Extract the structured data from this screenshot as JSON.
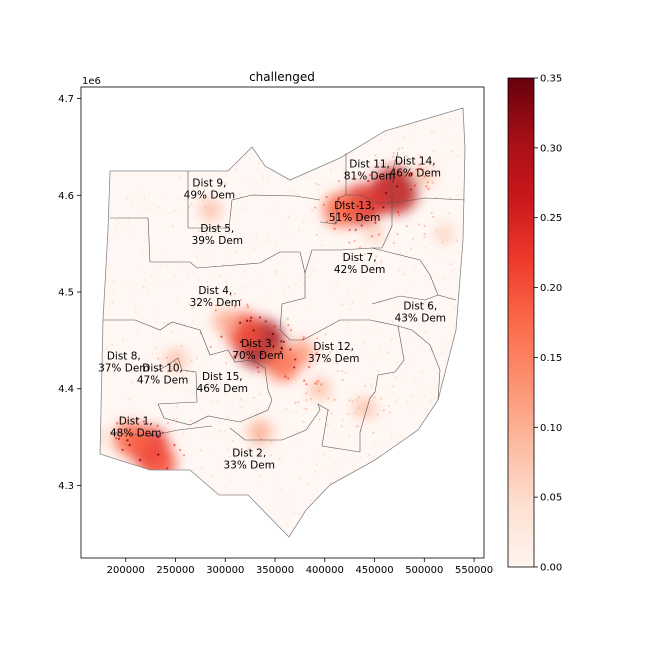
{
  "chart_data": {
    "type": "heatmap",
    "title": "challenged",
    "xlabel": "",
    "ylabel": "",
    "y_offset_label": "1e6",
    "x_range": [
      155000,
      560000
    ],
    "y_range": [
      4225000,
      4712000
    ],
    "x_ticks": [
      200000,
      250000,
      300000,
      350000,
      400000,
      450000,
      500000,
      550000
    ],
    "x_tick_labels": [
      "200000",
      "250000",
      "300000",
      "350000",
      "400000",
      "450000",
      "500000",
      "550000"
    ],
    "y_ticks": [
      4.3,
      4.4,
      4.5,
      4.6,
      4.7
    ],
    "y_tick_labels": [
      "4.3",
      "4.4",
      "4.5",
      "4.6",
      "4.7"
    ],
    "colorbar": {
      "cmap": "Reds",
      "range": [
        0,
        0.35
      ],
      "ticks": [
        0.0,
        0.05,
        0.1,
        0.15,
        0.2,
        0.25,
        0.3,
        0.35
      ],
      "tick_labels": [
        "0.00",
        "0.05",
        "0.10",
        "0.15",
        "0.20",
        "0.25",
        "0.30",
        "0.35"
      ]
    },
    "grid": false,
    "districts": [
      {
        "label": "Dist 1,",
        "sub": "48% Dem",
        "x": 210000,
        "y": 4363000
      },
      {
        "label": "Dist 2,",
        "sub": "33% Dem",
        "x": 324000,
        "y": 4330000
      },
      {
        "label": "Dist 3,",
        "sub": "70% Dem",
        "x": 333000,
        "y": 4443000
      },
      {
        "label": "Dist 4,",
        "sub": "32% Dem",
        "x": 290000,
        "y": 4498000
      },
      {
        "label": "Dist 5,",
        "sub": "39% Dem",
        "x": 292000,
        "y": 4562000
      },
      {
        "label": "Dist 6,",
        "sub": "43% Dem",
        "x": 496000,
        "y": 4482000
      },
      {
        "label": "Dist 7,",
        "sub": "42% Dem",
        "x": 435000,
        "y": 4532000
      },
      {
        "label": "Dist 8,",
        "sub": "37% Dem",
        "x": 198000,
        "y": 4430000
      },
      {
        "label": "Dist 9,",
        "sub": "49% Dem",
        "x": 284000,
        "y": 4609000
      },
      {
        "label": "Dist 10,",
        "sub": "47% Dem",
        "x": 237000,
        "y": 4418000
      },
      {
        "label": "Dist 11,",
        "sub": "81% Dem",
        "x": 445000,
        "y": 4629000
      },
      {
        "label": "Dist 12,",
        "sub": "37% Dem",
        "x": 409000,
        "y": 4440000
      },
      {
        "label": "Dist 13,",
        "sub": "51% Dem",
        "x": 430000,
        "y": 4586000
      },
      {
        "label": "Dist 14,",
        "sub": "46% Dem",
        "x": 491000,
        "y": 4632000
      },
      {
        "label": "Dist 15,",
        "sub": "46% Dem",
        "x": 297000,
        "y": 4409000
      }
    ],
    "hotspots": [
      {
        "x": 335000,
        "y": 4447000,
        "value": 0.3
      },
      {
        "x": 470000,
        "y": 4605000,
        "value": 0.28
      },
      {
        "x": 438000,
        "y": 4590000,
        "value": 0.24
      },
      {
        "x": 416000,
        "y": 4585000,
        "value": 0.18
      },
      {
        "x": 223000,
        "y": 4340000,
        "value": 0.23
      },
      {
        "x": 205000,
        "y": 4348000,
        "value": 0.18
      },
      {
        "x": 376000,
        "y": 4437000,
        "value": 0.12
      },
      {
        "x": 318000,
        "y": 4460000,
        "value": 0.2
      },
      {
        "x": 358000,
        "y": 4425000,
        "value": 0.17
      },
      {
        "x": 395000,
        "y": 4400000,
        "value": 0.08
      },
      {
        "x": 250000,
        "y": 4430000,
        "value": 0.08
      },
      {
        "x": 300000,
        "y": 4470000,
        "value": 0.1
      },
      {
        "x": 520000,
        "y": 4560000,
        "value": 0.06
      },
      {
        "x": 440000,
        "y": 4380000,
        "value": 0.08
      },
      {
        "x": 232000,
        "y": 4323000,
        "value": 0.2
      },
      {
        "x": 335000,
        "y": 4355000,
        "value": 0.1
      },
      {
        "x": 285000,
        "y": 4585000,
        "value": 0.08
      },
      {
        "x": 450000,
        "y": 4560000,
        "value": 0.06
      },
      {
        "x": 500000,
        "y": 4620000,
        "value": 0.07
      },
      {
        "x": 165000,
        "y": 4350000,
        "value": 0.08
      }
    ]
  }
}
